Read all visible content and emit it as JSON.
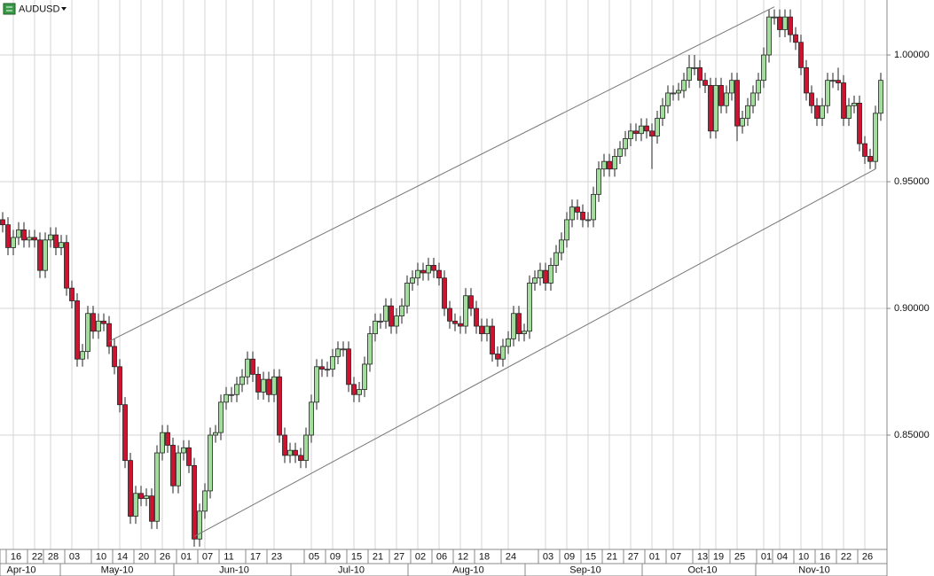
{
  "chart_data": {
    "type": "candlestick",
    "title": "AUDUSD",
    "categories": [
      null,
      null,
      "16",
      null,
      null,
      null,
      "22",
      null,
      null,
      "28",
      null,
      null,
      null,
      "03",
      null,
      null,
      null,
      null,
      "10",
      null,
      null,
      null,
      "14",
      null,
      null,
      null,
      "20",
      null,
      null,
      null,
      "26",
      null,
      null,
      null,
      "01",
      null,
      null,
      null,
      "07",
      null,
      null,
      null,
      "11",
      null,
      null,
      null,
      null,
      "17",
      null,
      null,
      null,
      "23",
      null,
      null,
      null,
      null,
      null,
      null,
      "05",
      null,
      null,
      null,
      "09",
      null,
      null,
      null,
      "15",
      null,
      null,
      null,
      "21",
      null,
      null,
      null,
      "27",
      null,
      null,
      null,
      "02",
      null,
      null,
      null,
      "06",
      null,
      null,
      null,
      "12",
      null,
      null,
      null,
      "18",
      null,
      null,
      null,
      null,
      "24",
      null,
      null,
      null,
      null,
      null,
      null,
      "03",
      null,
      null,
      null,
      "09",
      null,
      null,
      null,
      "15",
      null,
      null,
      null,
      "21",
      null,
      null,
      null,
      "27",
      null,
      null,
      null,
      "01",
      null,
      null,
      null,
      "07",
      null,
      null,
      null,
      null,
      "13",
      null,
      null,
      "19",
      null,
      null,
      null,
      "25",
      null,
      null,
      null,
      null,
      "01",
      null,
      null,
      "04",
      null,
      null,
      null,
      "10",
      null,
      null,
      null,
      "16",
      null,
      null,
      null,
      "22",
      null,
      null,
      null,
      "26",
      null,
      null,
      null
    ],
    "month_categories": [
      null,
      null,
      null,
      "Apr-10",
      null,
      null,
      null,
      null,
      null,
      null,
      null,
      null,
      null,
      null,
      null,
      null,
      null,
      null,
      null,
      null,
      null,
      "May-10",
      null,
      null,
      null,
      null,
      null,
      null,
      null,
      null,
      null,
      null,
      null,
      null,
      null,
      null,
      null,
      null,
      null,
      null,
      null,
      null,
      null,
      "Jun-10",
      null,
      null,
      null,
      null,
      null,
      null,
      null,
      null,
      null,
      null,
      null,
      null,
      null,
      null,
      null,
      null,
      null,
      null,
      null,
      null,
      null,
      "Jul-10",
      null,
      null,
      null,
      null,
      null,
      null,
      null,
      null,
      null,
      null,
      null,
      null,
      null,
      null,
      null,
      null,
      null,
      null,
      null,
      null,
      null,
      "Aug-10",
      null,
      null,
      null,
      null,
      null,
      null,
      null,
      null,
      null,
      null,
      null,
      null,
      null,
      null,
      null,
      null,
      null,
      null,
      null,
      null,
      null,
      "Sep-10",
      null,
      null,
      null,
      null,
      null,
      null,
      null,
      null,
      null,
      null,
      null,
      null,
      null,
      null,
      null,
      null,
      null,
      null,
      null,
      null,
      null,
      "Oct-10",
      null,
      null,
      null,
      null,
      null,
      null,
      null,
      null,
      null,
      null,
      null,
      null,
      null,
      null,
      null,
      null,
      null,
      null,
      null,
      null,
      "Nov-10",
      null,
      null,
      null,
      null,
      null,
      null,
      null,
      null,
      null,
      null,
      null,
      null,
      null
    ],
    "open": [
      0.935,
      0.933,
      0.924,
      0.928,
      0.931,
      0.927,
      0.928,
      0.927,
      0.915,
      0.927,
      0.929,
      0.924,
      0.926,
      0.908,
      0.903,
      0.88,
      0.883,
      0.898,
      0.891,
      0.895,
      0.894,
      0.885,
      0.877,
      0.862,
      0.84,
      0.818,
      0.827,
      0.825,
      0.826,
      0.816,
      0.843,
      0.851,
      0.846,
      0.83,
      0.843,
      0.845,
      0.838,
      0.809,
      0.82,
      0.828,
      0.85,
      0.851,
      0.863,
      0.866,
      0.866,
      0.87,
      0.873,
      0.88,
      0.874,
      0.867,
      0.872,
      0.866,
      0.873,
      0.85,
      0.842,
      0.844,
      0.842,
      0.84,
      0.85,
      0.863,
      0.877,
      0.876,
      0.876,
      0.881,
      0.884,
      0.884,
      0.87,
      0.866,
      0.868,
      0.878,
      0.89,
      0.895,
      0.895,
      0.901,
      0.893,
      0.897,
      0.901,
      0.91,
      0.912,
      0.915,
      0.914,
      0.917,
      0.915,
      0.912,
      0.9,
      0.895,
      0.894,
      0.893,
      0.905,
      0.9,
      0.893,
      0.89,
      0.893,
      0.882,
      0.88,
      0.885,
      0.888,
      0.898,
      0.89,
      0.891,
      0.91,
      0.912,
      0.915,
      0.91,
      0.917,
      0.922,
      0.927,
      0.935,
      0.94,
      0.938,
      0.935,
      0.935,
      0.945,
      0.955,
      0.958,
      0.955,
      0.96,
      0.963,
      0.967,
      0.97,
      0.969,
      0.972,
      0.97,
      0.968,
      0.975,
      0.98,
      0.985,
      0.985,
      0.986,
      0.99,
      0.995,
      0.995,
      0.99,
      0.988,
      0.97,
      0.988,
      0.98,
      0.985,
      0.99,
      0.972,
      0.975,
      0.98,
      0.985,
      0.99,
      1.0,
      1.015,
      1.015,
      1.01,
      1.015,
      1.008,
      1.005,
      0.995,
      0.985,
      0.98,
      0.975,
      0.98,
      0.99,
      0.99,
      0.989,
      0.975,
      0.98,
      0.981,
      0.965,
      0.96,
      0.958,
      0.977
    ],
    "high": [
      0.938,
      0.936,
      0.931,
      0.934,
      0.934,
      0.931,
      0.931,
      0.93,
      0.93,
      0.932,
      0.932,
      0.929,
      0.929,
      0.911,
      0.906,
      0.886,
      0.901,
      0.901,
      0.898,
      0.898,
      0.897,
      0.888,
      0.88,
      0.865,
      0.843,
      0.83,
      0.83,
      0.829,
      0.829,
      0.846,
      0.854,
      0.854,
      0.849,
      0.846,
      0.848,
      0.848,
      0.841,
      0.823,
      0.831,
      0.853,
      0.854,
      0.866,
      0.869,
      0.869,
      0.873,
      0.876,
      0.883,
      0.883,
      0.877,
      0.875,
      0.875,
      0.876,
      0.876,
      0.853,
      0.847,
      0.847,
      0.845,
      0.853,
      0.866,
      0.88,
      0.88,
      0.879,
      0.884,
      0.887,
      0.887,
      0.887,
      0.873,
      0.871,
      0.881,
      0.893,
      0.898,
      0.898,
      0.904,
      0.904,
      0.9,
      0.904,
      0.913,
      0.915,
      0.918,
      0.918,
      0.92,
      0.92,
      0.918,
      0.915,
      0.903,
      0.898,
      0.897,
      0.908,
      0.908,
      0.903,
      0.896,
      0.896,
      0.896,
      0.885,
      0.888,
      0.891,
      0.901,
      0.901,
      0.894,
      0.913,
      0.915,
      0.918,
      0.918,
      0.92,
      0.925,
      0.93,
      0.938,
      0.943,
      0.943,
      0.941,
      0.938,
      0.948,
      0.958,
      0.961,
      0.961,
      0.963,
      0.966,
      0.97,
      0.973,
      0.973,
      0.975,
      0.975,
      0.973,
      0.978,
      0.983,
      0.988,
      0.988,
      0.989,
      0.993,
      1.0,
      1.0,
      0.998,
      0.993,
      0.991,
      0.991,
      0.991,
      0.988,
      0.993,
      0.993,
      0.978,
      0.983,
      0.988,
      0.993,
      1.003,
      1.018,
      1.018,
      1.018,
      1.018,
      1.018,
      1.011,
      1.008,
      0.998,
      0.988,
      0.983,
      0.983,
      0.993,
      0.993,
      0.995,
      0.992,
      0.983,
      0.984,
      0.984,
      0.968,
      0.963,
      0.98,
      0.993
    ],
    "low": [
      0.93,
      0.921,
      0.921,
      0.925,
      0.924,
      0.924,
      0.924,
      0.912,
      0.912,
      0.924,
      0.921,
      0.921,
      0.905,
      0.9,
      0.877,
      0.877,
      0.88,
      0.888,
      0.888,
      0.891,
      0.882,
      0.874,
      0.859,
      0.837,
      0.815,
      0.815,
      0.822,
      0.822,
      0.813,
      0.813,
      0.84,
      0.843,
      0.827,
      0.827,
      0.84,
      0.835,
      0.806,
      0.806,
      0.817,
      0.825,
      0.847,
      0.848,
      0.86,
      0.863,
      0.863,
      0.867,
      0.87,
      0.871,
      0.864,
      0.864,
      0.863,
      0.863,
      0.847,
      0.839,
      0.839,
      0.839,
      0.837,
      0.837,
      0.847,
      0.86,
      0.873,
      0.873,
      0.873,
      0.878,
      0.881,
      0.867,
      0.863,
      0.863,
      0.865,
      0.875,
      0.887,
      0.892,
      0.892,
      0.89,
      0.89,
      0.894,
      0.898,
      0.907,
      0.909,
      0.911,
      0.911,
      0.912,
      0.909,
      0.897,
      0.892,
      0.891,
      0.89,
      0.89,
      0.897,
      0.89,
      0.887,
      0.887,
      0.879,
      0.877,
      0.877,
      0.882,
      0.885,
      0.887,
      0.887,
      0.888,
      0.907,
      0.909,
      0.907,
      0.907,
      0.914,
      0.919,
      0.924,
      0.932,
      0.935,
      0.932,
      0.932,
      0.932,
      0.942,
      0.952,
      0.952,
      0.952,
      0.957,
      0.96,
      0.964,
      0.966,
      0.966,
      0.967,
      0.955,
      0.965,
      0.972,
      0.977,
      0.982,
      0.982,
      0.983,
      0.987,
      0.992,
      0.987,
      0.985,
      0.967,
      0.967,
      0.977,
      0.977,
      0.982,
      0.966,
      0.969,
      0.972,
      0.977,
      0.982,
      0.987,
      0.997,
      1.012,
      1.007,
      1.007,
      1.005,
      1.002,
      0.992,
      0.982,
      0.977,
      0.972,
      0.972,
      0.977,
      0.987,
      0.986,
      0.972,
      0.972,
      0.977,
      0.962,
      0.957,
      0.955,
      0.955,
      0.974
    ],
    "close": [
      0.933,
      0.924,
      0.928,
      0.931,
      0.927,
      0.928,
      0.927,
      0.915,
      0.927,
      0.929,
      0.924,
      0.926,
      0.908,
      0.903,
      0.88,
      0.883,
      0.898,
      0.891,
      0.895,
      0.894,
      0.885,
      0.877,
      0.862,
      0.84,
      0.818,
      0.827,
      0.825,
      0.826,
      0.816,
      0.843,
      0.851,
      0.846,
      0.83,
      0.843,
      0.845,
      0.838,
      0.809,
      0.82,
      0.828,
      0.85,
      0.851,
      0.863,
      0.866,
      0.866,
      0.87,
      0.873,
      0.88,
      0.874,
      0.867,
      0.872,
      0.866,
      0.873,
      0.85,
      0.842,
      0.844,
      0.842,
      0.84,
      0.85,
      0.863,
      0.877,
      0.876,
      0.876,
      0.881,
      0.884,
      0.884,
      0.87,
      0.866,
      0.868,
      0.878,
      0.89,
      0.895,
      0.895,
      0.901,
      0.893,
      0.897,
      0.901,
      0.91,
      0.912,
      0.915,
      0.914,
      0.917,
      0.915,
      0.912,
      0.9,
      0.895,
      0.894,
      0.893,
      0.905,
      0.9,
      0.893,
      0.89,
      0.893,
      0.882,
      0.88,
      0.885,
      0.888,
      0.898,
      0.89,
      0.891,
      0.91,
      0.912,
      0.915,
      0.91,
      0.917,
      0.922,
      0.927,
      0.935,
      0.94,
      0.938,
      0.935,
      0.935,
      0.945,
      0.955,
      0.958,
      0.955,
      0.96,
      0.963,
      0.967,
      0.97,
      0.969,
      0.972,
      0.97,
      0.968,
      0.975,
      0.98,
      0.985,
      0.985,
      0.986,
      0.99,
      0.995,
      0.995,
      0.99,
      0.988,
      0.97,
      0.988,
      0.98,
      0.985,
      0.99,
      0.972,
      0.975,
      0.98,
      0.985,
      0.99,
      1.0,
      1.015,
      1.015,
      1.01,
      1.015,
      1.008,
      1.005,
      0.995,
      0.985,
      0.98,
      0.975,
      0.98,
      0.99,
      0.99,
      0.989,
      0.975,
      0.98,
      0.981,
      0.965,
      0.96,
      0.958,
      0.977,
      0.99
    ],
    "up_color": "#a3dd9b",
    "down_color": "#cc1430",
    "ylim": [
      0.8049,
      1.0217
    ],
    "yticks": [
      {
        "value": 0.85,
        "label": "0.85000"
      },
      {
        "value": 0.9,
        "label": "0.90000"
      },
      {
        "value": 0.95,
        "label": "0.95000"
      },
      {
        "value": 1.0,
        "label": "1.00000"
      }
    ],
    "grid": true,
    "trendlines": [
      {
        "x": [
          20,
          145
        ],
        "y": [
          0.887,
          1.019
        ]
      },
      {
        "x": [
          36,
          164
        ],
        "y": [
          0.81,
          0.955
        ]
      }
    ]
  }
}
